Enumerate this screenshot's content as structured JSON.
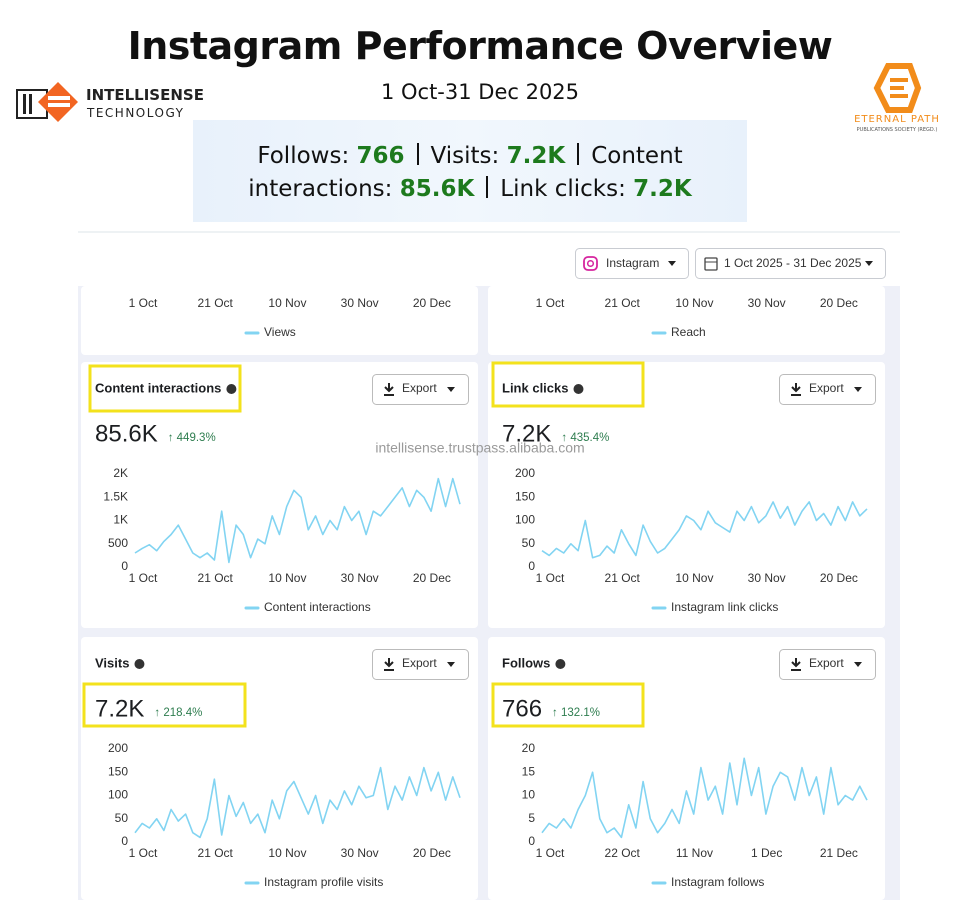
{
  "header": {
    "title": "Instagram Performance Overview",
    "subtitle": "1 Oct-31 Dec 2025",
    "logo_left": {
      "name": "INTELLISENSE",
      "tagline": "TECHNOLOGY"
    },
    "logo_right": {
      "name": "ETERNAL PATH",
      "tagline": "PUBLICATIONS SOCIETY (REGD.)"
    }
  },
  "summary": [
    {
      "label": "Follows:",
      "value": "766"
    },
    {
      "label": "Visits:",
      "value": "7.2K"
    },
    {
      "label": "Content interactions:",
      "value": "85.6K"
    },
    {
      "label": "Link clicks:",
      "value": "7.2K"
    }
  ],
  "watermark": "intellisense.trustpass.alibaba.com",
  "controls": {
    "platform": "Instagram",
    "date_range": "1 Oct 2025 - 31 Dec 2025"
  },
  "export_label": "Export",
  "partial_panels": [
    {
      "categories": [
        "1 Oct",
        "21 Oct",
        "10 Nov",
        "30 Nov",
        "20 Dec"
      ],
      "legend": "Views"
    },
    {
      "categories": [
        "1 Oct",
        "21 Oct",
        "10 Nov",
        "30 Nov",
        "20 Dec"
      ],
      "legend": "Reach"
    }
  ],
  "chart_data": [
    {
      "type": "line",
      "title": "Content interactions",
      "total": "85.6K",
      "change": "↑ 449.3%",
      "categories": [
        "1 Oct",
        null,
        null,
        null,
        null,
        null,
        null,
        null,
        null,
        null,
        "21 Oct",
        null,
        null,
        null,
        null,
        null,
        null,
        null,
        null,
        null,
        "10 Nov",
        null,
        null,
        null,
        null,
        null,
        null,
        null,
        null,
        null,
        "30 Nov",
        null,
        null,
        null,
        null,
        null,
        null,
        null,
        null,
        null,
        "20 Dec",
        null,
        null,
        null,
        null,
        null
      ],
      "series": [
        {
          "name": "Content interactions",
          "color": "#82d4f2",
          "values": [
            300,
            400,
            480,
            350,
            550,
            700,
            900,
            600,
            300,
            200,
            300,
            150,
            1200,
            100,
            900,
            700,
            200,
            600,
            500,
            1100,
            700,
            1300,
            1650,
            1500,
            800,
            1100,
            700,
            1000,
            800,
            1300,
            1000,
            1200,
            700,
            1200,
            1100,
            1300,
            1500,
            1700,
            1300,
            1650,
            1500,
            1200,
            1900,
            1300,
            1900,
            1350
          ]
        }
      ],
      "ylim": [
        0,
        2000
      ],
      "yticks": [
        0,
        500,
        {
          "value": 1000,
          "label": "1K"
        },
        {
          "value": 1500,
          "label": "1.5K"
        },
        {
          "value": 2000,
          "label": "2K"
        }
      ]
    },
    {
      "type": "line",
      "title": "Link clicks",
      "total": "7.2K",
      "change": "↑ 435.4%",
      "categories": [
        "1 Oct",
        null,
        null,
        null,
        null,
        null,
        null,
        null,
        null,
        null,
        "21 Oct",
        null,
        null,
        null,
        null,
        null,
        null,
        null,
        null,
        null,
        "10 Nov",
        null,
        null,
        null,
        null,
        null,
        null,
        null,
        null,
        null,
        "30 Nov",
        null,
        null,
        null,
        null,
        null,
        null,
        null,
        null,
        null,
        "20 Dec",
        null,
        null,
        null,
        null,
        null
      ],
      "series": [
        {
          "name": "Instagram link clicks",
          "color": "#82d4f2",
          "values": [
            35,
            25,
            40,
            30,
            50,
            35,
            100,
            20,
            25,
            45,
            30,
            80,
            50,
            25,
            90,
            55,
            30,
            40,
            60,
            80,
            110,
            100,
            80,
            120,
            95,
            85,
            75,
            120,
            100,
            130,
            95,
            110,
            140,
            105,
            130,
            90,
            120,
            140,
            100,
            115,
            90,
            130,
            100,
            140,
            110,
            125
          ]
        }
      ],
      "ylim": [
        0,
        200
      ],
      "yticks": [
        0,
        50,
        100,
        150,
        200
      ]
    },
    {
      "type": "line",
      "title": "Visits",
      "total": "7.2K",
      "change": "↑ 218.4%",
      "categories": [
        "1 Oct",
        null,
        null,
        null,
        null,
        null,
        null,
        null,
        null,
        null,
        "21 Oct",
        null,
        null,
        null,
        null,
        null,
        null,
        null,
        null,
        null,
        "10 Nov",
        null,
        null,
        null,
        null,
        null,
        null,
        null,
        null,
        null,
        "30 Nov",
        null,
        null,
        null,
        null,
        null,
        null,
        null,
        null,
        null,
        "20 Dec",
        null,
        null,
        null,
        null,
        null
      ],
      "series": [
        {
          "name": "Instagram profile visits",
          "color": "#82d4f2",
          "values": [
            20,
            40,
            30,
            50,
            25,
            70,
            45,
            60,
            20,
            10,
            50,
            135,
            15,
            100,
            55,
            85,
            40,
            60,
            20,
            90,
            50,
            110,
            130,
            95,
            60,
            100,
            40,
            90,
            70,
            110,
            80,
            120,
            95,
            100,
            160,
            70,
            120,
            90,
            140,
            100,
            160,
            110,
            150,
            90,
            140,
            95
          ]
        }
      ],
      "ylim": [
        0,
        200
      ],
      "yticks": [
        0,
        50,
        100,
        150,
        200
      ]
    },
    {
      "type": "line",
      "title": "Follows",
      "total": "766",
      "change": "↑ 132.1%",
      "categories": [
        "1 Oct",
        null,
        null,
        null,
        null,
        null,
        null,
        null,
        null,
        null,
        "22 Oct",
        null,
        null,
        null,
        null,
        null,
        null,
        null,
        null,
        null,
        "11 Nov",
        null,
        null,
        null,
        null,
        null,
        null,
        null,
        null,
        null,
        "1 Dec",
        null,
        null,
        null,
        null,
        null,
        null,
        null,
        null,
        null,
        "21 Dec",
        null,
        null,
        null,
        null,
        null
      ],
      "series": [
        {
          "name": "Instagram follows",
          "color": "#82d4f2",
          "values": [
            2,
            4,
            3,
            5,
            3,
            7,
            10,
            15,
            5,
            2,
            3,
            1,
            8,
            3,
            13,
            5,
            2,
            4,
            7,
            4,
            11,
            6,
            16,
            9,
            12,
            6,
            17,
            8,
            18,
            10,
            16,
            6,
            12,
            15,
            14,
            9,
            16,
            10,
            14,
            6,
            16,
            8,
            10,
            9,
            12,
            9
          ]
        }
      ],
      "ylim": [
        0,
        20
      ],
      "yticks": [
        0,
        5,
        10,
        15,
        20
      ]
    }
  ]
}
